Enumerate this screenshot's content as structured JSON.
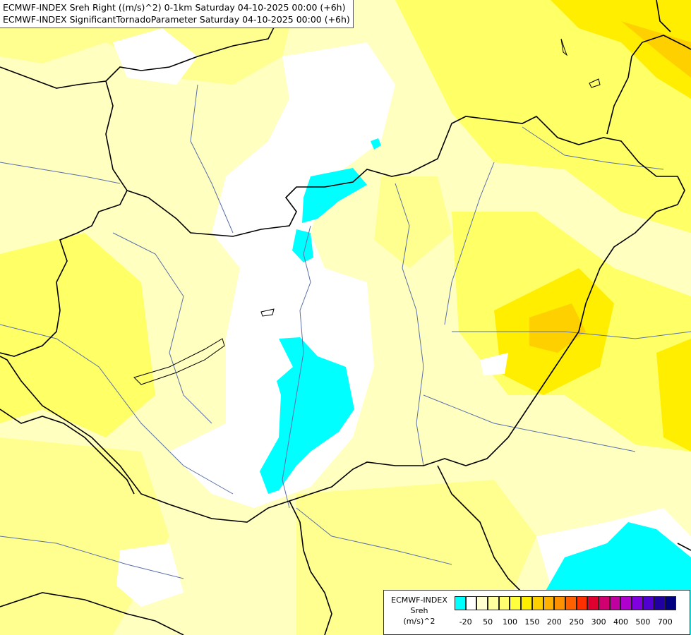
{
  "titles": {
    "line1": "ECMWF-INDEX Sreh Right ((m/s)^2) 0-1km Saturday 04-10-2025 00:00 (+6h)",
    "line2": "ECMWF-INDEX SignificantTornadoParameter Saturday 04-10-2025 00:00 (+6h)"
  },
  "legend": {
    "line1": "ECMWF-INDEX",
    "line2": "Sreh",
    "line3": "(m/s)^2",
    "colors": [
      "#00ffff",
      "#ffffff",
      "#ffffd0",
      "#ffffa0",
      "#ffff70",
      "#ffff40",
      "#ffee00",
      "#ffd000",
      "#ffb000",
      "#ff9000",
      "#ff6000",
      "#ff3000",
      "#e00030",
      "#d00070",
      "#c000a0",
      "#b000d0",
      "#8000e0",
      "#5000d0",
      "#2000a0",
      "#000080"
    ],
    "ticks": [
      "-20",
      "50",
      "100",
      "150",
      "200",
      "250",
      "300",
      "400",
      "500",
      "700"
    ]
  },
  "map_colors": {
    "base": "#ffffc0",
    "light": "#ffffa0",
    "mid": "#ffff66",
    "strong": "#ffee00",
    "orange": "#ffd000",
    "white": "#ffffff",
    "cyan": "#00ffff",
    "border": "#000000",
    "river": "#5a6fa8"
  }
}
